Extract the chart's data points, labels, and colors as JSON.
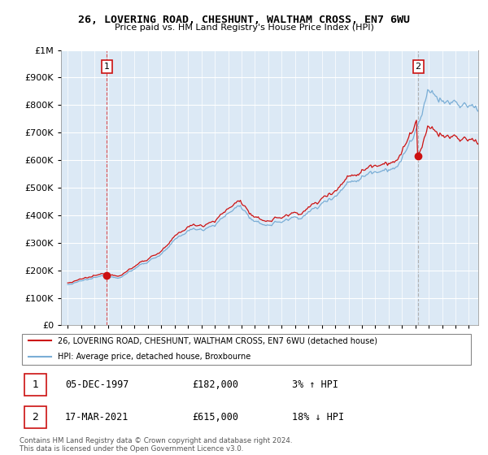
{
  "title": "26, LOVERING ROAD, CHESHUNT, WALTHAM CROSS, EN7 6WU",
  "subtitle": "Price paid vs. HM Land Registry's House Price Index (HPI)",
  "legend_line1": "26, LOVERING ROAD, CHESHUNT, WALTHAM CROSS, EN7 6WU (detached house)",
  "legend_line2": "HPI: Average price, detached house, Broxbourne",
  "footer": "Contains HM Land Registry data © Crown copyright and database right 2024.\nThis data is licensed under the Open Government Licence v3.0.",
  "point1_label": "1",
  "point1_date": "05-DEC-1997",
  "point1_price": "£182,000",
  "point1_hpi": "3% ↑ HPI",
  "point2_label": "2",
  "point2_date": "17-MAR-2021",
  "point2_price": "£615,000",
  "point2_hpi": "18% ↓ HPI",
  "hpi_color": "#7aaed6",
  "price_color": "#cc1111",
  "vline1_color": "#dd4444",
  "vline2_color": "#aaaaaa",
  "bg_color": "#dce9f5",
  "point1_x": 1997.92,
  "point1_y": 182000,
  "point2_x": 2021.21,
  "point2_y": 615000,
  "ylim": [
    0,
    1000000
  ],
  "xlim_start": 1994.5,
  "xlim_end": 2025.7
}
